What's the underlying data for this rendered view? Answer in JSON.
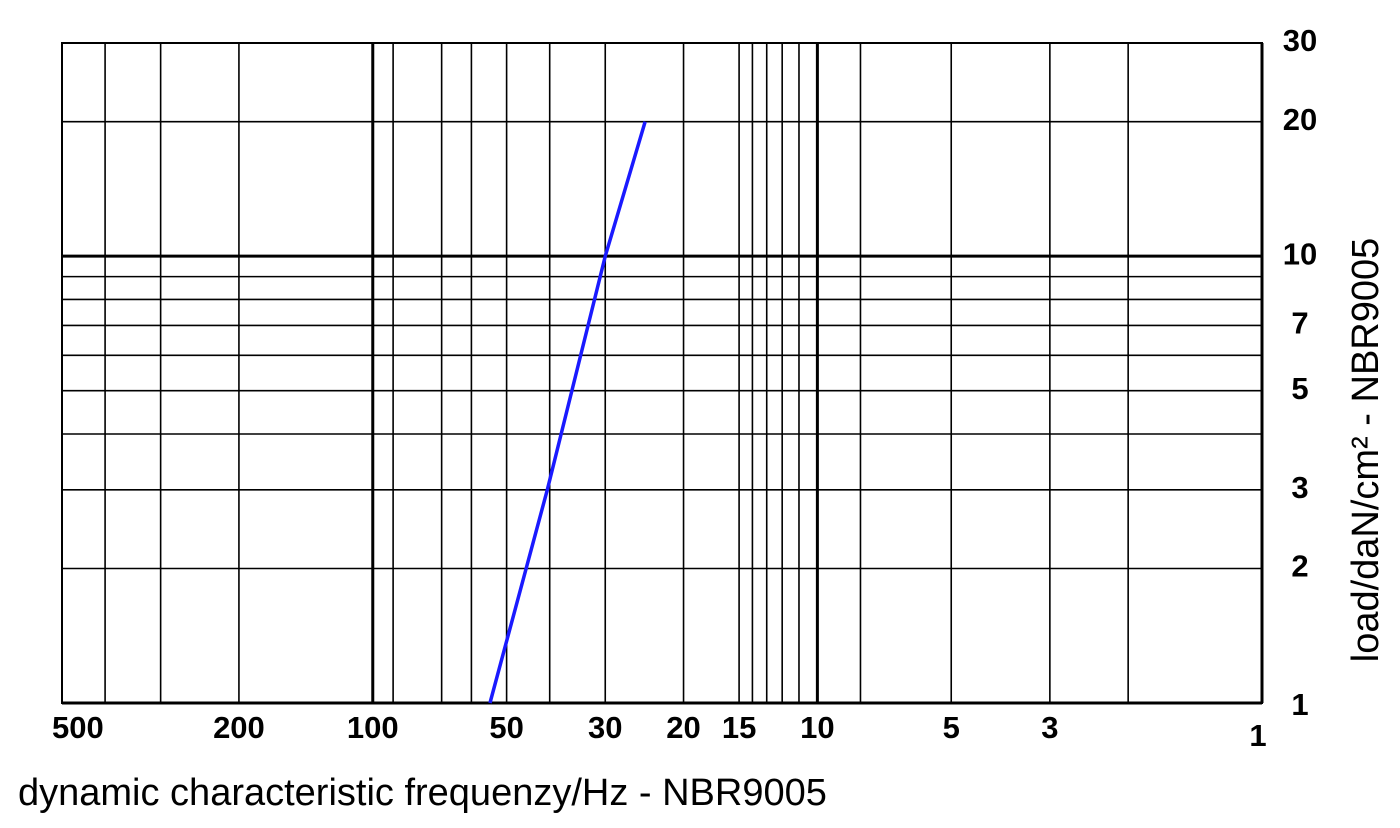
{
  "chart_data": {
    "type": "line",
    "xlabel": "dynamic characteristic frequenzy/Hz - NBR9005",
    "ylabel": "load/daN/cm² - NBR9005",
    "xscale": "log",
    "yscale": "log",
    "grid": true,
    "xlim": [
      500,
      1
    ],
    "ylim": [
      1,
      30
    ],
    "xticks": [
      500,
      200,
      100,
      50,
      30,
      20,
      15,
      10,
      5,
      3,
      1
    ],
    "xminor": [
      400,
      300,
      90,
      70,
      60,
      40,
      14,
      13,
      12,
      11,
      8,
      2
    ],
    "yticks": [
      1,
      2,
      3,
      5,
      7,
      10,
      20,
      30
    ],
    "yminor": [
      4,
      6,
      8,
      9
    ],
    "x": [
      54.5,
      40.5,
      30,
      24.4
    ],
    "series": [
      {
        "color": "#1a1aff",
        "values": [
          1,
          3,
          10,
          20
        ]
      }
    ]
  }
}
